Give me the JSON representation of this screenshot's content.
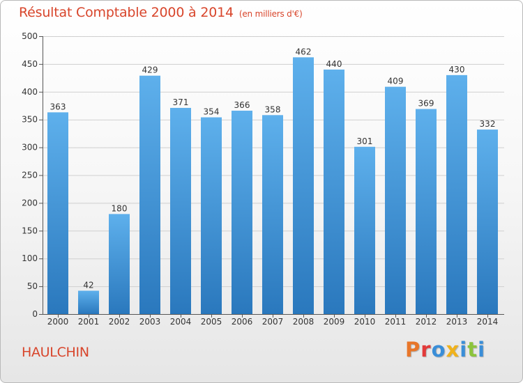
{
  "chart_data": {
    "type": "bar",
    "title": "Résultat Comptable 2000 à 2014",
    "subtitle": "(en milliers d'€)",
    "categories": [
      "2000",
      "2001",
      "2002",
      "2003",
      "2004",
      "2005",
      "2006",
      "2007",
      "2008",
      "2009",
      "2010",
      "2011",
      "2012",
      "2013",
      "2014"
    ],
    "values": [
      363,
      42,
      180,
      429,
      371,
      354,
      366,
      358,
      462,
      440,
      301,
      409,
      369,
      430,
      332
    ],
    "ylim": [
      0,
      500
    ],
    "yticks": [
      0,
      50,
      100,
      150,
      200,
      250,
      300,
      350,
      400,
      450,
      500
    ],
    "grid": true,
    "bar_color": "#4a98d8",
    "xlabel": "",
    "ylabel": ""
  },
  "footer": {
    "commune": "HAULCHIN",
    "brand": "Proxiti",
    "brand_colors": [
      "#e8762a",
      "#e23a3a",
      "#3a8ed8",
      "#f0b21c",
      "#3a8ed8",
      "#8cc43c",
      "#3a8ed8"
    ]
  }
}
